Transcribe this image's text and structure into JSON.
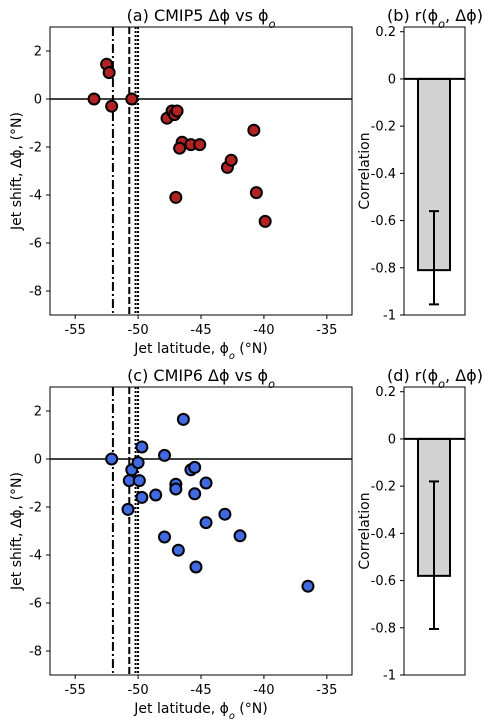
{
  "chart_data": [
    {
      "id": "a",
      "type": "scatter",
      "title": "(a) CMIP5 Δϕ vs ϕ",
      "title_sub": "o",
      "xlabel": "Jet latitude, ϕ",
      "xlabel_sub": "o",
      "xlabel_unit": " (°N)",
      "ylabel": "Jet shift, Δϕ, (°N)",
      "xlim": [
        -57,
        -33
      ],
      "ylim": [
        -9,
        3
      ],
      "xticks": [
        -55,
        -50,
        -45,
        -40,
        -35
      ],
      "yticks": [
        2,
        0,
        -2,
        -4,
        -6,
        -8
      ],
      "point_color": "#b22222",
      "vlines": [
        {
          "x": -52,
          "style": "dashdot"
        },
        {
          "x": -50.7,
          "style": "dashed"
        },
        {
          "x": -50.2,
          "style": "dotted"
        },
        {
          "x": -50.0,
          "style": "dotted"
        }
      ],
      "points": [
        {
          "x": -53.5,
          "y": 0.0
        },
        {
          "x": -52.5,
          "y": 1.45
        },
        {
          "x": -52.3,
          "y": 1.1
        },
        {
          "x": -52.1,
          "y": -0.3
        },
        {
          "x": -50.5,
          "y": 0.0
        },
        {
          "x": -47.7,
          "y": -0.8
        },
        {
          "x": -47.3,
          "y": -0.5
        },
        {
          "x": -47.1,
          "y": -0.65
        },
        {
          "x": -46.9,
          "y": -0.5
        },
        {
          "x": -46.5,
          "y": -1.8
        },
        {
          "x": -46.7,
          "y": -2.05
        },
        {
          "x": -45.8,
          "y": -1.9
        },
        {
          "x": -45.1,
          "y": -1.9
        },
        {
          "x": -47.0,
          "y": -4.1
        },
        {
          "x": -42.9,
          "y": -2.85
        },
        {
          "x": -42.6,
          "y": -2.55
        },
        {
          "x": -40.8,
          "y": -1.3
        },
        {
          "x": -40.6,
          "y": -3.9
        },
        {
          "x": -39.9,
          "y": -5.1
        }
      ]
    },
    {
      "id": "b",
      "type": "bar",
      "title": "(b) r(ϕ",
      "title_sub": "o",
      "title_tail": ", Δϕ)",
      "ylabel": "Correlation",
      "ylim": [
        -1,
        0.22
      ],
      "yticks": [
        0.2,
        0,
        -0.2,
        -0.4,
        -0.6,
        -0.8,
        -1
      ],
      "ytick_labels": [
        "0.2",
        "0",
        "-0.2",
        "-0.4",
        "-0.6",
        "-0.8",
        "-1"
      ],
      "value": -0.81,
      "err_low": -0.955,
      "err_high": -0.56,
      "bar_color": "#d3d3d3"
    },
    {
      "id": "c",
      "type": "scatter",
      "title": "(c) CMIP6 Δϕ vs ϕ",
      "title_sub": "o",
      "xlabel": "Jet latitude, ϕ",
      "xlabel_sub": "o",
      "xlabel_unit": " (°N)",
      "ylabel": "Jet shift, Δϕ, (°N)",
      "xlim": [
        -57,
        -33
      ],
      "ylim": [
        -9,
        3
      ],
      "xticks": [
        -55,
        -50,
        -45,
        -40,
        -35
      ],
      "yticks": [
        2,
        0,
        -2,
        -4,
        -6,
        -8
      ],
      "point_color": "#4169e1",
      "vlines": [
        {
          "x": -52,
          "style": "dashdot"
        },
        {
          "x": -50.7,
          "style": "dashed"
        },
        {
          "x": -50.2,
          "style": "dotted"
        },
        {
          "x": -50.0,
          "style": "dotted"
        }
      ],
      "points": [
        {
          "x": -52.1,
          "y": 0.0
        },
        {
          "x": -50.5,
          "y": -0.45
        },
        {
          "x": -50.0,
          "y": -0.15
        },
        {
          "x": -49.7,
          "y": 0.5
        },
        {
          "x": -50.7,
          "y": -0.9
        },
        {
          "x": -49.9,
          "y": -0.9
        },
        {
          "x": -49.7,
          "y": -1.6
        },
        {
          "x": -50.8,
          "y": -2.1
        },
        {
          "x": -48.6,
          "y": -1.5
        },
        {
          "x": -47.9,
          "y": 0.15
        },
        {
          "x": -47.0,
          "y": -1.05
        },
        {
          "x": -47.0,
          "y": -1.25
        },
        {
          "x": -46.4,
          "y": 1.65
        },
        {
          "x": -45.8,
          "y": -0.45
        },
        {
          "x": -45.5,
          "y": -0.35
        },
        {
          "x": -45.5,
          "y": -1.45
        },
        {
          "x": -44.6,
          "y": -1.0
        },
        {
          "x": -44.6,
          "y": -2.65
        },
        {
          "x": -43.1,
          "y": -2.3
        },
        {
          "x": -47.9,
          "y": -3.25
        },
        {
          "x": -46.8,
          "y": -3.8
        },
        {
          "x": -45.4,
          "y": -4.5
        },
        {
          "x": -41.9,
          "y": -3.2
        },
        {
          "x": -36.5,
          "y": -5.3
        }
      ]
    },
    {
      "id": "d",
      "type": "bar",
      "title": "(d) r(ϕ",
      "title_sub": "o",
      "title_tail": ", Δϕ)",
      "ylabel": "Correlation",
      "ylim": [
        -1,
        0.22
      ],
      "yticks": [
        0.2,
        0,
        -0.2,
        -0.4,
        -0.6,
        -0.8,
        -1
      ],
      "ytick_labels": [
        "0.2",
        "0",
        "-0.2",
        "-0.4",
        "-0.6",
        "-0.8",
        "-1"
      ],
      "value": -0.58,
      "err_low": -0.805,
      "err_high": -0.18,
      "bar_color": "#d3d3d3"
    }
  ]
}
